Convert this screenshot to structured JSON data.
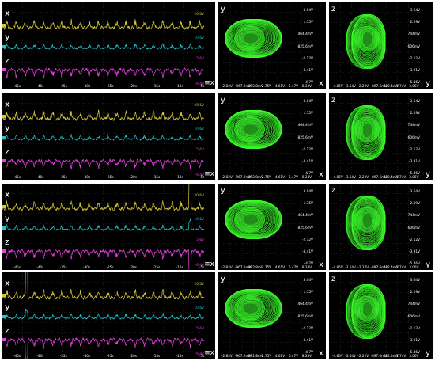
{
  "colors": {
    "x": "#d8c838",
    "y": "#22c4cc",
    "z": "#e840e0",
    "phase": "#3cff2c",
    "background": "#000000",
    "grid": "#2f2f2f"
  },
  "icons": {
    "time_panel_marker": "axis-menu-icon"
  },
  "rows": [
    {
      "time": {
        "labels": {
          "x": "x",
          "y": "y",
          "z": "z",
          "marker": "≡x"
        },
        "scale": {
          "x": "20.6V",
          "y": "10.6V",
          "z": "5.6V",
          "z_neg": "-6.4V"
        },
        "ticks": [
          "-45s",
          "-40s",
          "-35s",
          "-30s",
          "-25s",
          "-20s",
          "-15s",
          "-10s",
          "-5s"
        ]
      },
      "yx": {
        "vaxis": "y",
        "haxis": "x",
        "right_ticks": [
          "3.04V",
          "1.75V",
          "464.4mV",
          "-825.6mV",
          "-2.12V",
          "-3.41V",
          "-4.7V"
        ],
        "bottom_ticks": [
          "-2.83V",
          "-967.2mV",
          "892.8mV",
          "2.75V",
          "4.61V",
          "6.47V",
          "8.33V"
        ]
      },
      "zy": {
        "vaxis": "z",
        "haxis": "y",
        "right_ticks": [
          "3.64V",
          "2.29V",
          "744mV",
          "-606mV",
          "-2.12V",
          "-3.91V",
          "-5.46V"
        ],
        "bottom_ticks": [
          "-4.86V",
          "-3.54V",
          "-2.22V",
          "-897.6mV",
          "422.4mV",
          "1.74V",
          "3.06V"
        ]
      }
    },
    {
      "time": {
        "labels": {
          "x": "x",
          "y": "y",
          "z": "z",
          "marker": "≡x"
        },
        "scale": {
          "x": "20.6V",
          "y": "10.6V",
          "z": "5.6V",
          "z_neg": "-6.4V"
        },
        "ticks": [
          "-45s",
          "-40s",
          "-35s",
          "-30s",
          "-25s",
          "-20s",
          "-15s",
          "-10s",
          "-5s"
        ]
      },
      "yx": {
        "vaxis": "y",
        "haxis": "x",
        "right_ticks": [
          "3.04V",
          "1.75V",
          "464.4mV",
          "-825.6mV",
          "-2.12V",
          "-3.41V",
          "-4.7V"
        ],
        "bottom_ticks": [
          "-2.83V",
          "-967.2mV",
          "892.8mV",
          "2.75V",
          "4.61V",
          "6.47V",
          "8.33V"
        ]
      },
      "zy": {
        "vaxis": "z",
        "haxis": "y",
        "right_ticks": [
          "3.64V",
          "2.29V",
          "744mV",
          "-606mV",
          "-2.12V",
          "-3.91V",
          "-5.46V"
        ],
        "bottom_ticks": [
          "-4.86V",
          "-3.54V",
          "-2.22V",
          "-897.6mV",
          "422.4mV",
          "1.74V",
          "3.06V"
        ]
      }
    },
    {
      "time": {
        "labels": {
          "x": "x",
          "y": "y",
          "z": "z",
          "marker": "≡x"
        },
        "scale": {
          "x": "20.6V",
          "y": "10.6V",
          "z": "5.6V",
          "z_neg": "-6.4V"
        },
        "ticks": [
          "-45s",
          "-40s",
          "-35s",
          "-30s",
          "-25s",
          "-20s",
          "-15s",
          "-10s",
          "-5s"
        ]
      },
      "yx": {
        "vaxis": "y",
        "haxis": "x",
        "right_ticks": [
          "3.04V",
          "1.75V",
          "464.4mV",
          "-825.6mV",
          "-2.12V",
          "-3.41V",
          "-4.7V"
        ],
        "bottom_ticks": [
          "-2.83V",
          "-967.2mV",
          "892.8mV",
          "2.75V",
          "4.61V",
          "6.47V",
          "8.33V"
        ]
      },
      "zy": {
        "vaxis": "z",
        "haxis": "y",
        "right_ticks": [
          "3.64V",
          "2.29V",
          "744mV",
          "-606mV",
          "-2.12V",
          "-3.91V",
          "-5.46V"
        ],
        "bottom_ticks": [
          "-4.86V",
          "-3.54V",
          "-2.22V",
          "-897.6mV",
          "422.4mV",
          "1.74V",
          "3.06V"
        ]
      }
    },
    {
      "time": {
        "labels": {
          "x": "x",
          "y": "y",
          "z": "z",
          "marker": "≡x"
        },
        "scale": {
          "x": "20.6V",
          "y": "10.6V",
          "z": "5.6V",
          "z_neg": "-6.4V"
        },
        "ticks": [
          "-45s",
          "-40s",
          "-35s",
          "-30s",
          "-25s",
          "-20s",
          "-15s",
          "-10s",
          "-5s"
        ]
      },
      "yx": {
        "vaxis": "y",
        "haxis": "x",
        "right_ticks": [
          "3.04V",
          "1.75V",
          "464.4mV",
          "-825.6mV",
          "-2.12V",
          "-3.41V",
          "-4.7V"
        ],
        "bottom_ticks": [
          "-2.83V",
          "-967.2mV",
          "892.8mV",
          "2.75V",
          "4.61V",
          "6.47V",
          "8.33V"
        ]
      },
      "zy": {
        "vaxis": "z",
        "haxis": "y",
        "right_ticks": [
          "3.64V",
          "2.29V",
          "744mV",
          "-606mV",
          "-2.12V",
          "-3.91V",
          "-5.46V"
        ],
        "bottom_ticks": [
          "-4.86V",
          "-3.54V",
          "-2.22V",
          "-897.6mV",
          "422.4mV",
          "1.74V",
          "3.06V"
        ]
      }
    }
  ]
}
